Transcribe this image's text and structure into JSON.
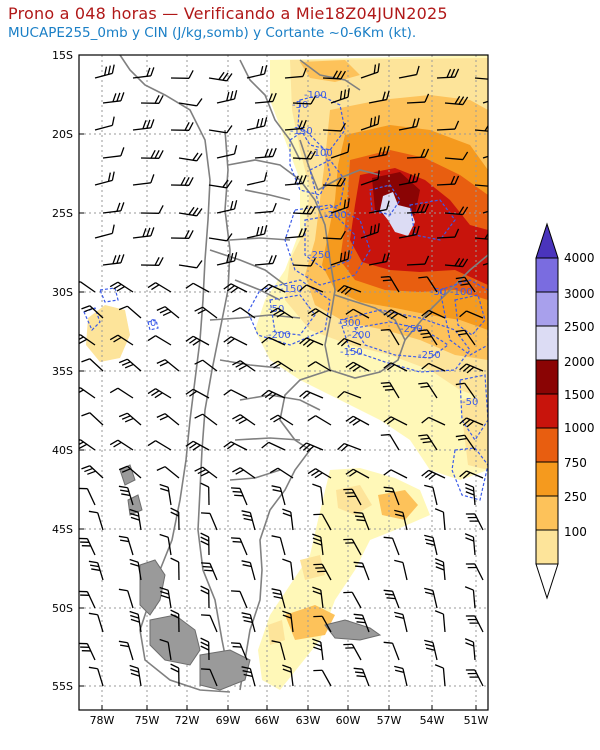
{
  "header": {
    "title": "Prono a 048 horas — Verificando a Mie18Z04JUN2025",
    "subtitle": "MUCAPE255_0mb y CIN (J/kg,somb) y Cortante ~0-6Km (kt)."
  },
  "map": {
    "lat_labels": [
      "15S",
      "20S",
      "25S",
      "30S",
      "35S",
      "40S",
      "45S",
      "50S",
      "55S"
    ],
    "lon_labels": [
      "78W",
      "75W",
      "72W",
      "69W",
      "66W",
      "63W",
      "60W",
      "57W",
      "54W",
      "51W"
    ],
    "lat_range": [
      -56,
      -15
    ],
    "lon_range": [
      -80,
      -50.5
    ],
    "grid": true
  },
  "colorbar": {
    "labels": [
      "100",
      "250",
      "750",
      "1000",
      "1500",
      "2000",
      "2500",
      "3000",
      "4000"
    ],
    "colors": [
      "#fff8b8",
      "#fde49a",
      "#fdc25a",
      "#f59a1e",
      "#e85e10",
      "#c8140c",
      "#8a0404",
      "#dcdcf4",
      "#a8a0ec",
      "#7a6ce0",
      "#4a34bc"
    ]
  },
  "cin_labels": [
    "-100",
    "-50",
    "-150",
    "-100",
    "-200",
    "-250",
    "-150",
    "-50",
    "-200",
    "-300",
    "-200",
    "-250",
    "-150",
    "-250",
    "-50",
    "-100",
    "-50",
    "0"
  ]
}
